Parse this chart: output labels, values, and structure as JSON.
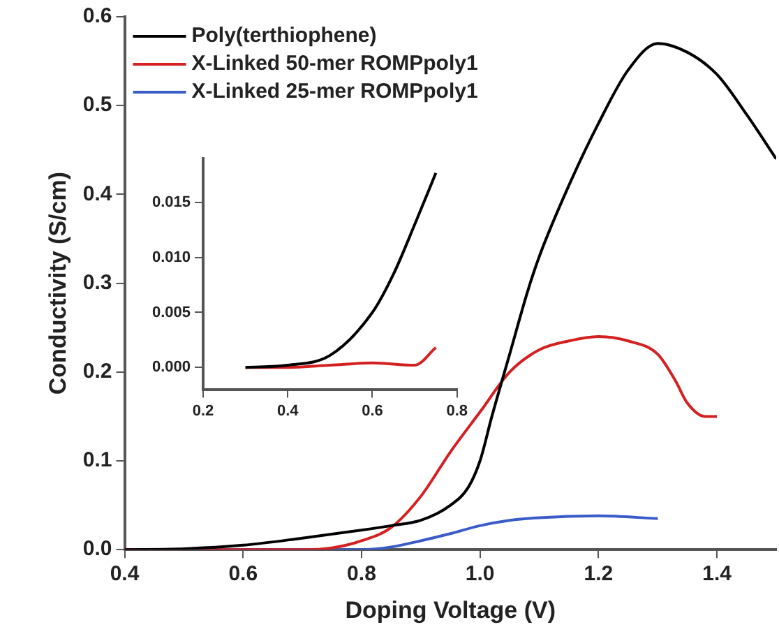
{
  "chart_data": [
    {
      "type": "line",
      "xlabel": "Doping Voltage (V)",
      "ylabel": "Conductivity (S/cm)",
      "xlim": [
        0.4,
        1.5
      ],
      "ylim": [
        0,
        0.6
      ],
      "xticks": [
        0.4,
        0.6,
        0.8,
        {
          "value": 1.0,
          "label": "1.0"
        },
        1.2,
        1.4
      ],
      "yticks": [
        {
          "value": 0,
          "label": "0.0"
        },
        0.1,
        0.2,
        0.3,
        0.4,
        0.5,
        0.6
      ],
      "grid": false,
      "legend": "top left",
      "marker": "none",
      "line_style": "solid",
      "series": [
        {
          "name": "Poly(terthiophene)",
          "color": "#000000",
          "x": [
            0.4,
            0.5,
            0.6,
            0.7,
            0.8,
            0.85,
            0.9,
            0.95,
            0.98,
            1.0,
            1.02,
            1.05,
            1.08,
            1.1,
            1.15,
            1.2,
            1.25,
            1.3,
            1.35,
            1.4,
            1.45,
            1.5
          ],
          "values": [
            0,
            0.001,
            0.005,
            0.013,
            0.022,
            0.027,
            0.033,
            0.05,
            0.07,
            0.1,
            0.15,
            0.22,
            0.29,
            0.33,
            0.41,
            0.48,
            0.54,
            0.57,
            0.56,
            0.535,
            0.49,
            0.44
          ]
        },
        {
          "name": "X-Linked 50-mer ROMPpoly1",
          "color": "#d42020",
          "x": [
            0.4,
            0.7,
            0.75,
            0.8,
            0.85,
            0.9,
            0.95,
            1.0,
            1.05,
            1.1,
            1.15,
            1.2,
            1.25,
            1.3,
            1.33,
            1.35,
            1.38,
            1.4
          ],
          "values": [
            0,
            0,
            0.002,
            0.01,
            0.025,
            0.06,
            0.11,
            0.155,
            0.2,
            0.225,
            0.235,
            0.24,
            0.235,
            0.22,
            0.19,
            0.165,
            0.15,
            0.15
          ]
        },
        {
          "name": "X-Linked 25-mer ROMPpoly1",
          "color": "#3a5cc8",
          "x": [
            0.4,
            0.8,
            0.85,
            0.9,
            0.95,
            1.0,
            1.05,
            1.1,
            1.2,
            1.3
          ],
          "values": [
            0,
            0,
            0.003,
            0.01,
            0.018,
            0.027,
            0.033,
            0.036,
            0.038,
            0.035
          ]
        }
      ]
    },
    {
      "type": "line",
      "xlim": [
        0.2,
        0.8
      ],
      "ylim": [
        -0.002,
        0.019
      ],
      "xticks": [
        0.2,
        0.4,
        0.6,
        0.8
      ],
      "yticks": [
        {
          "value": 0,
          "label": "0.000"
        },
        {
          "value": 0.005,
          "label": "0.005"
        },
        {
          "value": 0.01,
          "label": "0.010"
        },
        {
          "value": 0.015,
          "label": "0.015"
        }
      ],
      "grid": false,
      "marker": "none",
      "line_style": "solid",
      "series": [
        {
          "color": "#000000",
          "x": [
            0.3,
            0.4,
            0.5,
            0.6,
            0.65,
            0.7,
            0.75
          ],
          "values": [
            0,
            0.0002,
            0.0011,
            0.005,
            0.0085,
            0.013,
            0.0177
          ]
        },
        {
          "color": "#d42020",
          "x": [
            0.3,
            0.4,
            0.5,
            0.6,
            0.7,
            0.75
          ],
          "values": [
            0,
            0,
            0.0002,
            0.0004,
            0.0002,
            0.0018
          ]
        }
      ]
    }
  ]
}
